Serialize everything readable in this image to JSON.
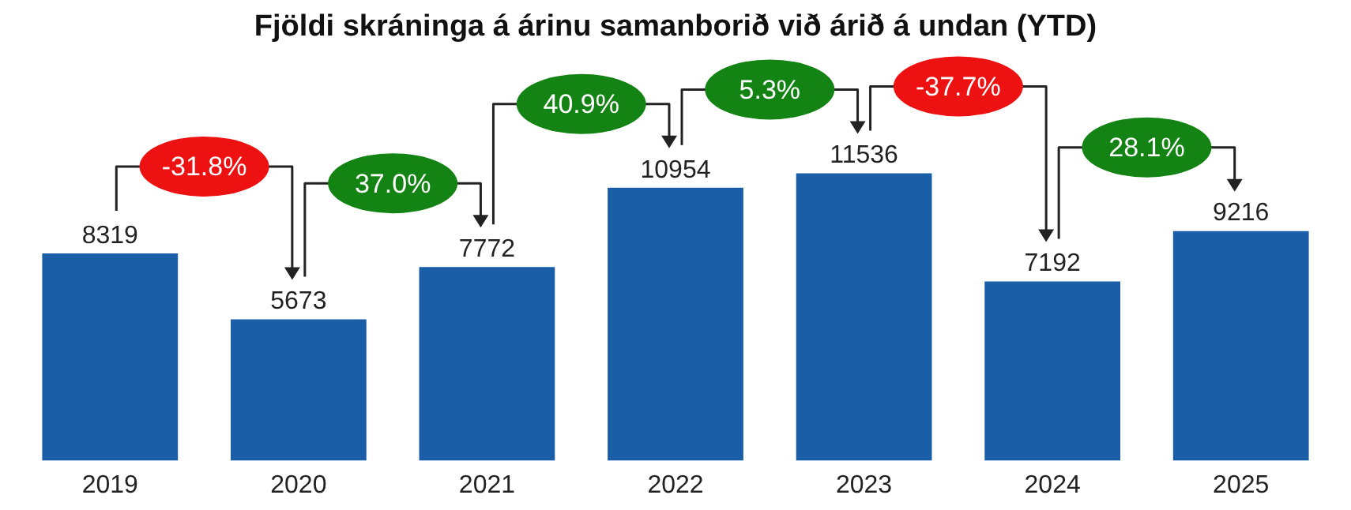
{
  "chart_data": {
    "type": "bar",
    "title": "Fjöldi skráninga á árinu samanborið við árið á undan (YTD)",
    "categories": [
      "2019",
      "2020",
      "2021",
      "2022",
      "2023",
      "2024",
      "2025"
    ],
    "values": [
      8319,
      5673,
      7772,
      10954,
      11536,
      7192,
      9216
    ],
    "color": "#1a5ea8",
    "tick_labels": "x",
    "grid": false,
    "data_labels": true,
    "annotations": [
      "-31.8%",
      "37.0%",
      "40.9%",
      "5.3%",
      "-37.7%",
      "28.1%"
    ]
  }
}
